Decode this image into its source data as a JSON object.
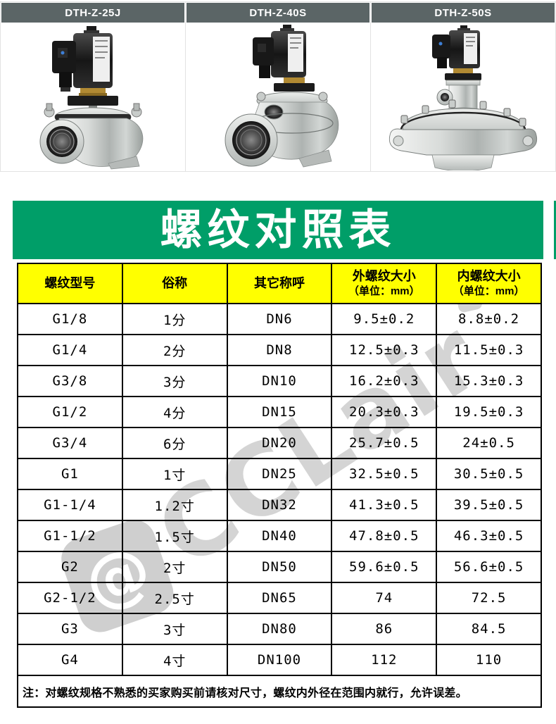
{
  "products": [
    {
      "model": "DTH-Z-25J"
    },
    {
      "model": "DTH-Z-40S"
    },
    {
      "model": "DTH-Z-50S"
    }
  ],
  "banner": {
    "title": "螺纹对照表"
  },
  "watermark": {
    "logo": "@",
    "text": "CCLair"
  },
  "colors": {
    "banner_green": "#009e68",
    "header_gray": "#5b6566",
    "table_header_yellow": "#ffff00",
    "watermark_gray": "#d4d4d4"
  },
  "chart_data": {
    "type": "table",
    "title": "螺纹对照表",
    "columns": [
      "螺纹型号",
      "俗称",
      "其它称呼",
      "外螺纹大小（单位：mm）",
      "内螺纹大小（单位：mm）"
    ],
    "rows": [
      [
        "G1/8",
        "1分",
        "DN6",
        "9.5±0.2",
        "8.8±0.2"
      ],
      [
        "G1/4",
        "2分",
        "DN8",
        "12.5±0.3",
        "11.5±0.3"
      ],
      [
        "G3/8",
        "3分",
        "DN10",
        "16.2±0.3",
        "15.3±0.3"
      ],
      [
        "G1/2",
        "4分",
        "DN15",
        "20.3±0.3",
        "19.5±0.3"
      ],
      [
        "G3/4",
        "6分",
        "DN20",
        "25.7±0.5",
        "24±0.5"
      ],
      [
        "G1",
        "1寸",
        "DN25",
        "32.5±0.5",
        "30.5±0.5"
      ],
      [
        "G1-1/4",
        "1.2寸",
        "DN32",
        "41.3±0.5",
        "39.5±0.5"
      ],
      [
        "G1-1/2",
        "1.5寸",
        "DN40",
        "47.8±0.5",
        "46.3±0.5"
      ],
      [
        "G2",
        "2寸",
        "DN50",
        "59.6±0.5",
        "56.6±0.5"
      ],
      [
        "G2-1/2",
        "2.5寸",
        "DN65",
        "74",
        "72.5"
      ],
      [
        "G3",
        "3寸",
        "DN80",
        "86",
        "84.5"
      ],
      [
        "G4",
        "4寸",
        "DN100",
        "112",
        "110"
      ]
    ]
  },
  "table": {
    "headers": [
      {
        "label": "螺纹型号",
        "sub": ""
      },
      {
        "label": "俗称",
        "sub": ""
      },
      {
        "label": "其它称呼",
        "sub": ""
      },
      {
        "label": "外螺纹大小",
        "sub": "（单位：mm）"
      },
      {
        "label": "内螺纹大小",
        "sub": "（单位：mm）"
      }
    ],
    "rows": [
      [
        "G1/8",
        "1分",
        "DN6",
        "9.5±0.2",
        "8.8±0.2"
      ],
      [
        "G1/4",
        "2分",
        "DN8",
        "12.5±0.3",
        "11.5±0.3"
      ],
      [
        "G3/8",
        "3分",
        "DN10",
        "16.2±0.3",
        "15.3±0.3"
      ],
      [
        "G1/2",
        "4分",
        "DN15",
        "20.3±0.3",
        "19.5±0.3"
      ],
      [
        "G3/4",
        "6分",
        "DN20",
        "25.7±0.5",
        "24±0.5"
      ],
      [
        "G1",
        "1寸",
        "DN25",
        "32.5±0.5",
        "30.5±0.5"
      ],
      [
        "G1-1/4",
        "1.2寸",
        "DN32",
        "41.3±0.5",
        "39.5±0.5"
      ],
      [
        "G1-1/2",
        "1.5寸",
        "DN40",
        "47.8±0.5",
        "46.3±0.5"
      ],
      [
        "G2",
        "2寸",
        "DN50",
        "59.6±0.5",
        "56.6±0.5"
      ],
      [
        "G2-1/2",
        "2.5寸",
        "DN65",
        "74",
        "72.5"
      ],
      [
        "G3",
        "3寸",
        "DN80",
        "86",
        "84.5"
      ],
      [
        "G4",
        "4寸",
        "DN100",
        "112",
        "110"
      ]
    ],
    "note": "注：对螺纹规格不熟悉的买家购买前请核对尺寸，螺纹内外径在范围内就行，允许误差。"
  }
}
